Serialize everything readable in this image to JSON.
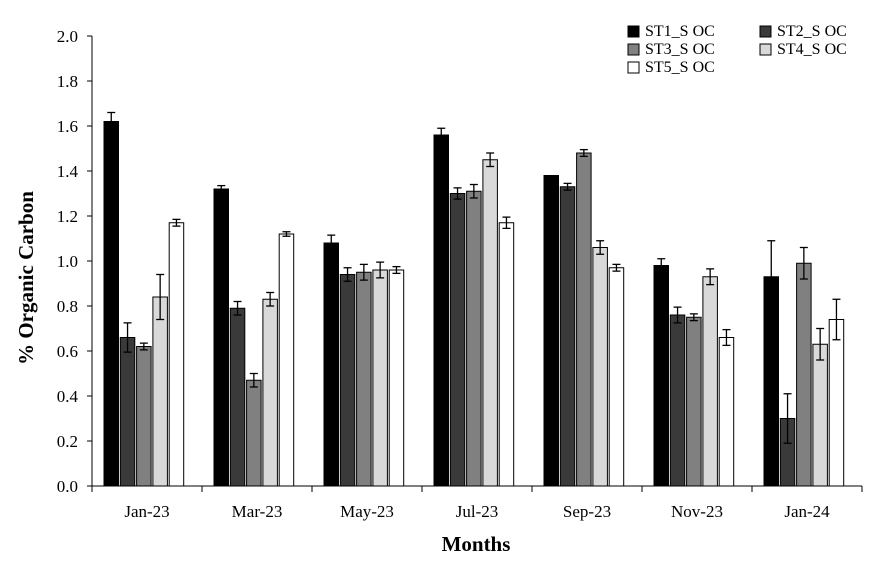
{
  "chart_data": {
    "type": "bar",
    "title": "",
    "xlabel": "Months",
    "ylabel": "% Organic Carbon",
    "ylim": [
      0,
      2.0
    ],
    "yticks": [
      "0.0",
      "0.2",
      "0.4",
      "0.6",
      "0.8",
      "1.0",
      "1.2",
      "1.4",
      "1.6",
      "1.8",
      "2.0"
    ],
    "grid": false,
    "legend_position": "top-right",
    "categories": [
      "Jan-23",
      "Mar-23",
      "May-23",
      "Jul-23",
      "Sep-23",
      "Nov-23",
      "Jan-24"
    ],
    "series": [
      {
        "name": "ST1_S OC",
        "color": "#000000",
        "values": [
          1.62,
          1.32,
          1.08,
          1.56,
          1.38,
          0.98,
          0.93
        ],
        "errors": [
          0.04,
          0.015,
          0.035,
          0.03,
          0.0,
          0.03,
          0.16
        ]
      },
      {
        "name": "ST2_S OC",
        "color": "#3a3a3a",
        "values": [
          0.66,
          0.79,
          0.94,
          1.3,
          1.33,
          0.76,
          0.3
        ],
        "errors": [
          0.065,
          0.03,
          0.03,
          0.025,
          0.015,
          0.035,
          0.11
        ]
      },
      {
        "name": "ST3_S OC",
        "color": "#808080",
        "values": [
          0.62,
          0.47,
          0.95,
          1.31,
          1.48,
          0.75,
          0.99
        ],
        "errors": [
          0.015,
          0.03,
          0.035,
          0.03,
          0.015,
          0.015,
          0.07
        ]
      },
      {
        "name": "ST4_S OC",
        "color": "#d9d9d9",
        "values": [
          0.84,
          0.83,
          0.96,
          1.45,
          1.06,
          0.93,
          0.63
        ],
        "errors": [
          0.1,
          0.03,
          0.035,
          0.03,
          0.03,
          0.035,
          0.07
        ]
      },
      {
        "name": "ST5_S OC",
        "color": "#ffffff",
        "values": [
          1.17,
          1.12,
          0.96,
          1.17,
          0.97,
          0.66,
          0.74
        ],
        "errors": [
          0.015,
          0.01,
          0.015,
          0.025,
          0.015,
          0.035,
          0.09
        ]
      }
    ]
  }
}
